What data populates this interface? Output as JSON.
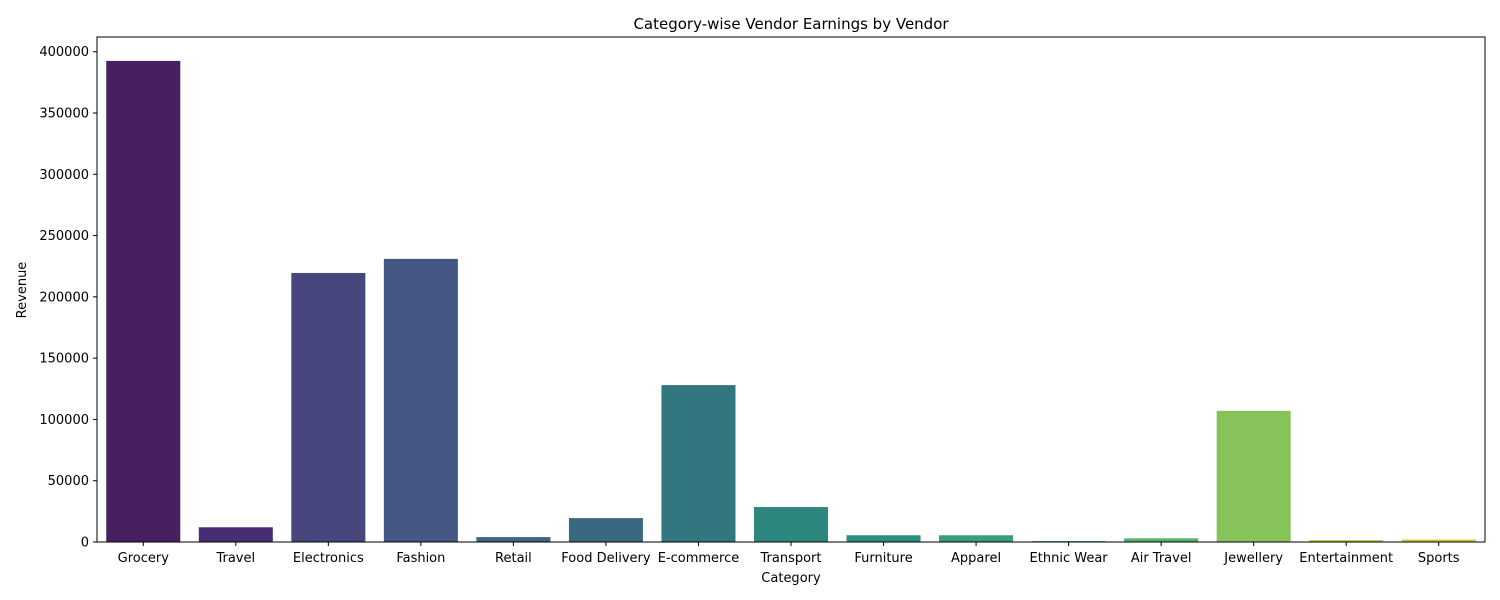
{
  "chart_data": {
    "type": "bar",
    "title": "Category-wise Vendor Earnings by Vendor",
    "xlabel": "Category",
    "ylabel": "Revenue",
    "ylim": [
      0,
      412000
    ],
    "yticks": [
      0,
      50000,
      100000,
      150000,
      200000,
      250000,
      300000,
      350000,
      400000
    ],
    "grid": false,
    "categories": [
      "Grocery",
      "Travel",
      "Electronics",
      "Fashion",
      "Retail",
      "Food Delivery",
      "E-commerce",
      "Transport",
      "Furniture",
      "Apparel",
      "Ethnic Wear",
      "Air Travel",
      "Jewellery",
      "Entertainment",
      "Sports"
    ],
    "values": [
      392500,
      12000,
      219500,
      231000,
      4000,
      19500,
      128000,
      28500,
      5500,
      5500,
      700,
      3000,
      107000,
      1500,
      2000
    ],
    "colors": [
      "#482060",
      "#472d74",
      "#47477e",
      "#445883",
      "#3d6782",
      "#3a6881",
      "#327780",
      "#2d877f",
      "#2c907e",
      "#3b9c7d",
      "#32a07a",
      "#54b16c",
      "#86c45a",
      "#aec83f",
      "#cbc837"
    ]
  }
}
